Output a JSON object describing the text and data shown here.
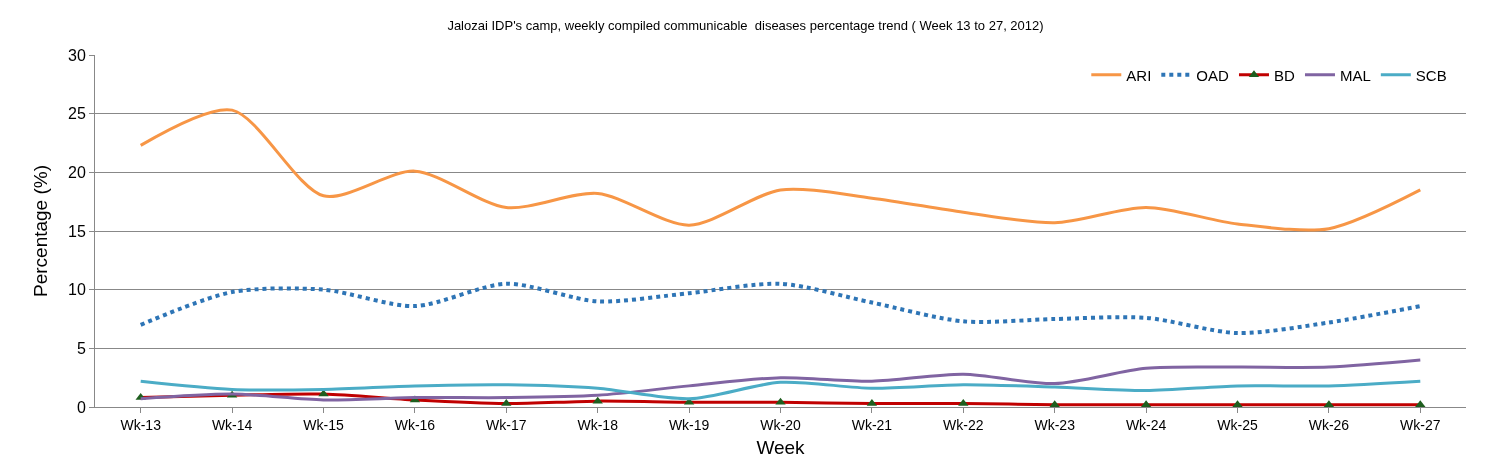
{
  "chart_data": {
    "type": "line",
    "title": "Jalozai IDP's camp, weekly compiled communicable  diseases percentage trend ( Week 13 to 27, 2012)",
    "xlabel": "Week",
    "ylabel": "Percentage (%)",
    "categories": [
      "Wk-13",
      "Wk-14",
      "Wk-15",
      "Wk-16",
      "Wk-17",
      "Wk-18",
      "Wk-19",
      "Wk-20",
      "Wk-21",
      "Wk-22",
      "Wk-23",
      "Wk-24",
      "Wk-25",
      "Wk-26",
      "Wk-27"
    ],
    "series": [
      {
        "name": "ARI",
        "color": "#f79646",
        "line_style": "solid",
        "marker": "none",
        "values": [
          22.3,
          25.3,
          18,
          20.1,
          17,
          18.2,
          15.5,
          18.5,
          17.8,
          16.6,
          15.7,
          17,
          15.6,
          15.2,
          18.5
        ]
      },
      {
        "name": "OAD",
        "color": "#2e75b6",
        "line_style": "dotted",
        "marker": "none",
        "values": [
          7,
          9.8,
          10,
          8.6,
          10.5,
          9,
          9.7,
          10.5,
          8.9,
          7.3,
          7.5,
          7.6,
          6.3,
          7.2,
          8.6
        ]
      },
      {
        "name": "BD",
        "color": "#c00000",
        "line_style": "solid",
        "marker": "triangle",
        "values": [
          0.8,
          1,
          1.1,
          0.6,
          0.3,
          0.5,
          0.4,
          0.4,
          0.3,
          0.3,
          0.2,
          0.2,
          0.2,
          0.2,
          0.2
        ]
      },
      {
        "name": "MAL",
        "color": "#8064a2",
        "line_style": "solid",
        "marker": "none",
        "values": [
          0.7,
          1.1,
          0.6,
          0.8,
          0.8,
          1,
          1.8,
          2.5,
          2.2,
          2.8,
          2,
          3.3,
          3.4,
          3.4,
          4
        ]
      },
      {
        "name": "SCB",
        "color": "#4bacc6",
        "line_style": "solid",
        "marker": "none",
        "values": [
          2.2,
          1.5,
          1.5,
          1.8,
          1.9,
          1.6,
          0.7,
          2.1,
          1.6,
          1.9,
          1.7,
          1.4,
          1.8,
          1.8,
          2.2
        ]
      }
    ],
    "ylim": [
      0,
      30
    ],
    "yticks": [
      0,
      5,
      10,
      15,
      20,
      25,
      30
    ],
    "grid": "y",
    "legend": "top right"
  }
}
